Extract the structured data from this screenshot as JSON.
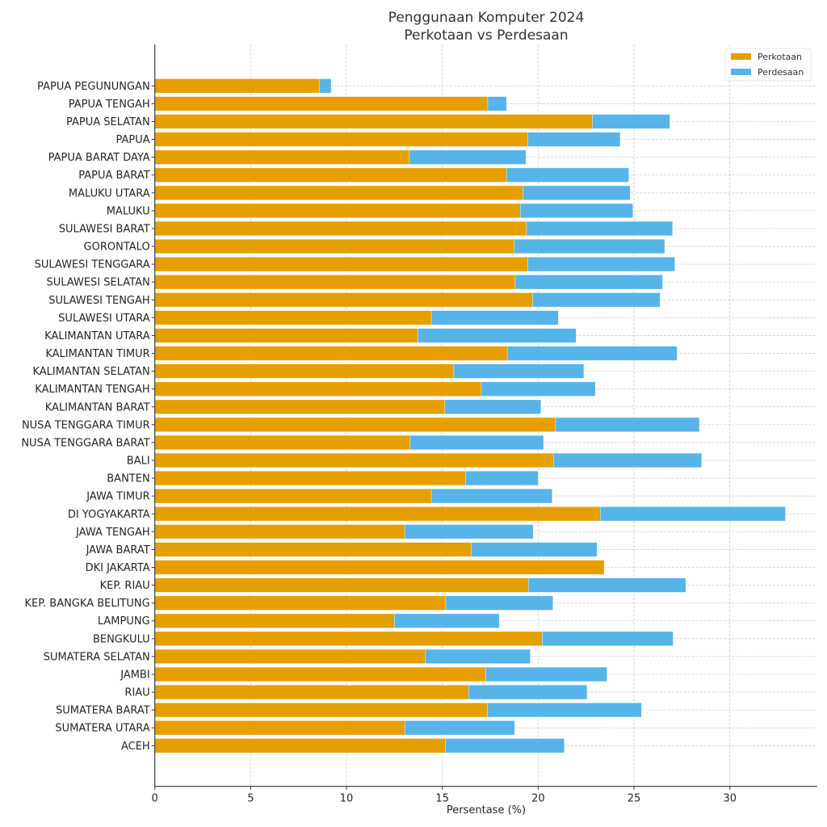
{
  "chart_data": {
    "type": "bar",
    "orientation": "horizontal",
    "stacked": true,
    "title": "Penggunaan Komputer 2024\nPerkotaan vs Perdesaan",
    "title_lines": [
      "Penggunaan Komputer 2024",
      "Perkotaan vs Perdesaan"
    ],
    "xlabel": "Persentase (%)",
    "ylabel": "",
    "xlim": [
      0,
      34.55
    ],
    "xticks": [
      0,
      5,
      10,
      15,
      20,
      25,
      30
    ],
    "grid": true,
    "legend_position": "top-right",
    "categories": [
      "ACEH",
      "SUMATERA UTARA",
      "SUMATERA BARAT",
      "RIAU",
      "JAMBI",
      "SUMATERA SELATAN",
      "BENGKULU",
      "LAMPUNG",
      "KEP. BANGKA BELITUNG",
      "KEP. RIAU",
      "DKI JAKARTA",
      "JAWA BARAT",
      "JAWA TENGAH",
      "DI YOGYAKARTA",
      "JAWA TIMUR",
      "BANTEN",
      "BALI",
      "NUSA TENGGARA BARAT",
      "NUSA TENGGARA TIMUR",
      "KALIMANTAN BARAT",
      "KALIMANTAN TENGAH",
      "KALIMANTAN SELATAN",
      "KALIMANTAN TIMUR",
      "KALIMANTAN UTARA",
      "SULAWESI UTARA",
      "SULAWESI TENGAH",
      "SULAWESI SELATAN",
      "SULAWESI TENGGARA",
      "GORONTALO",
      "SULAWESI BARAT",
      "MALUKU",
      "MALUKU UTARA",
      "PAPUA BARAT",
      "PAPUA BARAT DAYA",
      "PAPUA",
      "PAPUA SELATAN",
      "PAPUA TENGAH",
      "PAPUA PEGUNUNGAN"
    ],
    "series": [
      {
        "name": "Perkotaan",
        "color": "#E69F00",
        "values": [
          15.17,
          13.04,
          17.35,
          16.37,
          17.27,
          14.12,
          20.21,
          12.5,
          15.18,
          19.49,
          23.44,
          16.51,
          13.04,
          23.24,
          14.43,
          16.22,
          20.8,
          13.32,
          20.91,
          15.13,
          17.03,
          15.6,
          18.39,
          13.73,
          14.43,
          19.71,
          18.8,
          19.46,
          18.76,
          19.39,
          19.07,
          19.2,
          18.35,
          13.28,
          19.45,
          22.83,
          17.37,
          8.6
        ]
      },
      {
        "name": "Perdesaan",
        "color": "#56B4E9",
        "values": [
          6.19,
          5.73,
          8.04,
          6.18,
          6.32,
          5.47,
          6.83,
          5.47,
          5.59,
          8.21,
          0,
          6.56,
          6.7,
          9.66,
          6.3,
          3.78,
          7.73,
          6.96,
          7.5,
          5.01,
          5.95,
          6.78,
          8.86,
          8.25,
          6.62,
          6.65,
          7.69,
          7.67,
          7.84,
          7.62,
          5.87,
          5.6,
          6.38,
          6.08,
          4.83,
          4.04,
          0.98,
          0.6
        ]
      }
    ]
  }
}
